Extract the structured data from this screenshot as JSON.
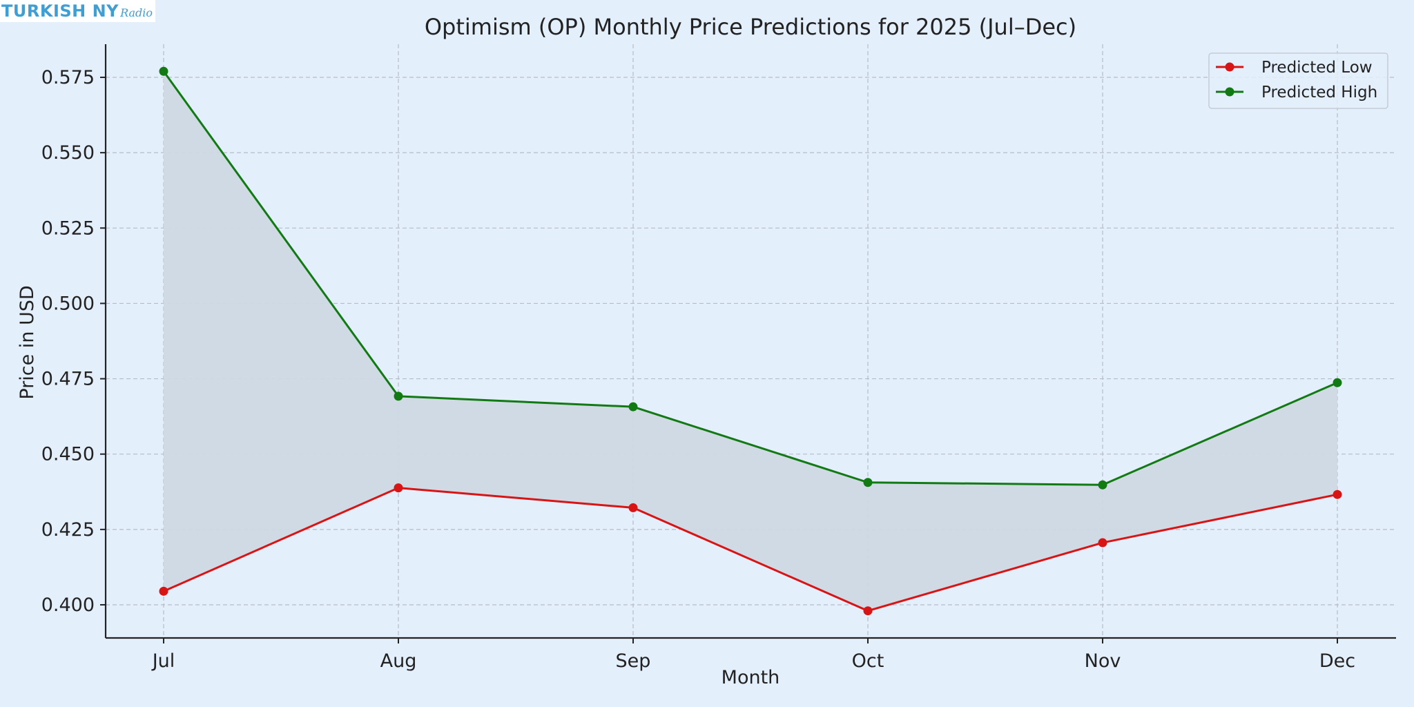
{
  "watermark": {
    "main": "TURKISH NY",
    "sub": "Radio"
  },
  "colors": {
    "background": "#e4effc",
    "low": "#d91414",
    "high": "#127a12",
    "band": "#cfd8e4",
    "grid": "#b5bcc6",
    "axis": "#222222"
  },
  "chart_data": {
    "type": "line",
    "title": "Optimism (OP) Monthly Price Predictions for 2025 (Jul–Dec)",
    "xlabel": "Month",
    "ylabel": "Price in USD",
    "categories": [
      "Jul",
      "Aug",
      "Sep",
      "Oct",
      "Nov",
      "Dec"
    ],
    "series": [
      {
        "name": "Predicted Low",
        "color": "#d91414",
        "values": [
          0.4045,
          0.4388,
          0.4322,
          0.398,
          0.4206,
          0.4366
        ]
      },
      {
        "name": "Predicted High",
        "color": "#127a12",
        "values": [
          0.577,
          0.4692,
          0.4657,
          0.4406,
          0.4398,
          0.4737
        ]
      }
    ],
    "fill_between": true,
    "ylim": [
      0.389,
      0.586
    ],
    "yticks": [
      0.4,
      0.425,
      0.45,
      0.475,
      0.5,
      0.525,
      0.55,
      0.575
    ],
    "ytick_labels": [
      "0.400",
      "0.425",
      "0.450",
      "0.475",
      "0.500",
      "0.525",
      "0.550",
      "0.575"
    ],
    "grid": true,
    "legend_position": "top-right"
  }
}
